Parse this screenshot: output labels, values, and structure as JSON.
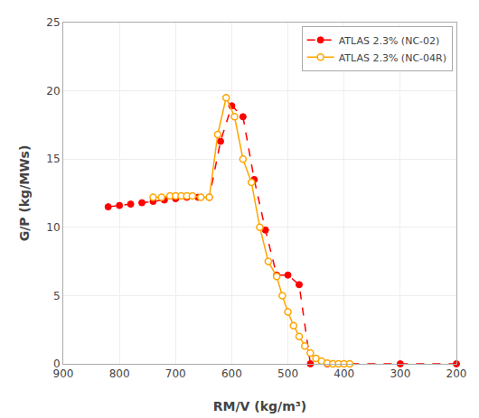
{
  "chart_data": {
    "type": "line",
    "xlabel": "RM/V (kg/m³)",
    "ylabel": "G/P (kg/MWs)",
    "series": [
      {
        "name": "ATLAS 2.3% (NC-02)",
        "color": "#FF0000",
        "marker": "filled",
        "line_style": "dashed",
        "x": [
          820,
          800,
          780,
          760,
          740,
          720,
          700,
          680,
          660,
          640,
          620,
          600,
          580,
          560,
          540,
          520,
          500,
          480,
          460,
          430,
          420,
          300,
          200
        ],
        "values": [
          11.5,
          11.6,
          11.7,
          11.8,
          11.9,
          12.0,
          12.1,
          12.2,
          12.2,
          12.2,
          16.3,
          18.9,
          18.1,
          13.5,
          9.8,
          6.5,
          6.5,
          5.8,
          0.0,
          0.0,
          0.0,
          0.0,
          0.0
        ]
      },
      {
        "name": "ATLAS 2.3% (NC-04R)",
        "color": "#FFA500",
        "marker": "open",
        "line_style": "solid",
        "x": [
          740,
          725,
          710,
          700,
          690,
          680,
          670,
          655,
          640,
          625,
          610,
          595,
          580,
          565,
          550,
          535,
          520,
          510,
          500,
          490,
          480,
          470,
          460,
          450,
          440,
          430,
          420,
          410,
          400,
          390
        ],
        "values": [
          12.2,
          12.2,
          12.3,
          12.3,
          12.3,
          12.3,
          12.3,
          12.2,
          12.2,
          16.8,
          19.5,
          18.1,
          15.0,
          13.3,
          10.0,
          7.5,
          6.4,
          5.0,
          3.8,
          2.8,
          2.0,
          1.3,
          0.8,
          0.4,
          0.2,
          0.05,
          0.0,
          0.0,
          0.0,
          0.0
        ]
      }
    ],
    "xlim": [
      900,
      200
    ],
    "ylim": [
      0,
      25
    ],
    "xticks": [
      900,
      800,
      700,
      600,
      500,
      400,
      300,
      200
    ],
    "yticks": [
      0,
      5,
      10,
      15,
      20,
      25
    ],
    "grid": true,
    "legend": "upper right"
  }
}
